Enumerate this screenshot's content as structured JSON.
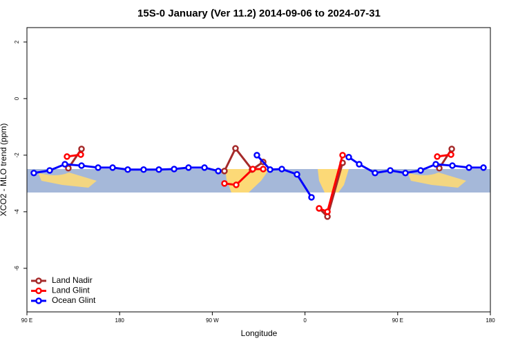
{
  "chart_data": {
    "type": "line",
    "title": "15S-0 January (Ver 11.2)   2014-09-06 to 2024-07-31",
    "x_label": "Longitude",
    "y_label": "XCO2 - MLO trend (ppm)",
    "xlim": [
      90,
      540
    ],
    "ylim": [
      -7.54,
      2.51
    ],
    "xticks": [
      {
        "value": 90,
        "label": "90 E"
      },
      180,
      {
        "value": 270,
        "label": "90 W"
      },
      {
        "value": 360,
        "label": "0"
      },
      {
        "value": 450,
        "label": "90 E"
      },
      {
        "value": 540,
        "label": "180"
      }
    ],
    "yticks": [
      2,
      0,
      -2,
      -4,
      -6
    ],
    "legend": "bottom-left",
    "series": [
      {
        "name": "Land Nadir",
        "color": "#a52a2a",
        "x": [
          130.2,
          143,
          null,
          281.8,
          292.5,
          308.6,
          319.4,
          null,
          373.7,
          381.8,
          396.5,
          null,
          490.4,
          502.5
        ],
        "values": [
          -2.46,
          -1.78,
          null,
          -2.56,
          -1.76,
          -2.51,
          -2.24,
          null,
          -3.88,
          -4.17,
          -2.27,
          null,
          -2.46,
          -1.78
        ]
      },
      {
        "name": "Land Glint",
        "color": "#ff0000",
        "x": [
          128.9,
          142.3,
          null,
          281.8,
          293.2,
          309.3,
          319.4,
          null,
          373.7,
          381.8,
          396.5,
          null,
          488.4,
          501.8
        ],
        "values": [
          -2.05,
          -1.98,
          null,
          -3.0,
          -3.05,
          -2.49,
          -2.49,
          null,
          -3.88,
          -4.0,
          -2.0,
          null,
          -2.05,
          -1.98
        ]
      },
      {
        "name": "Ocean Glint",
        "color": "#0000ff",
        "x": [
          96.7,
          112.1,
          126.9,
          143,
          159.1,
          173.2,
          187.9,
          203.3,
          218.1,
          232.9,
          246.9,
          262.4,
          275.8,
          null,
          313.3,
          326.1,
          337.5,
          352.2,
          366.3,
          null,
          402.5,
          412.6,
          428,
          442.8,
          457.5,
          472.3,
          487,
          503.1,
          519.2,
          533.3
        ],
        "values": [
          -2.63,
          -2.54,
          -2.32,
          -2.37,
          -2.44,
          -2.44,
          -2.51,
          -2.51,
          -2.51,
          -2.49,
          -2.44,
          -2.44,
          -2.56,
          null,
          -2.0,
          -2.51,
          -2.49,
          -2.68,
          -3.49,
          null,
          -2.07,
          -2.32,
          -2.63,
          -2.54,
          -2.63,
          -2.54,
          -2.32,
          -2.37,
          -2.44,
          -2.44
        ]
      }
    ]
  }
}
